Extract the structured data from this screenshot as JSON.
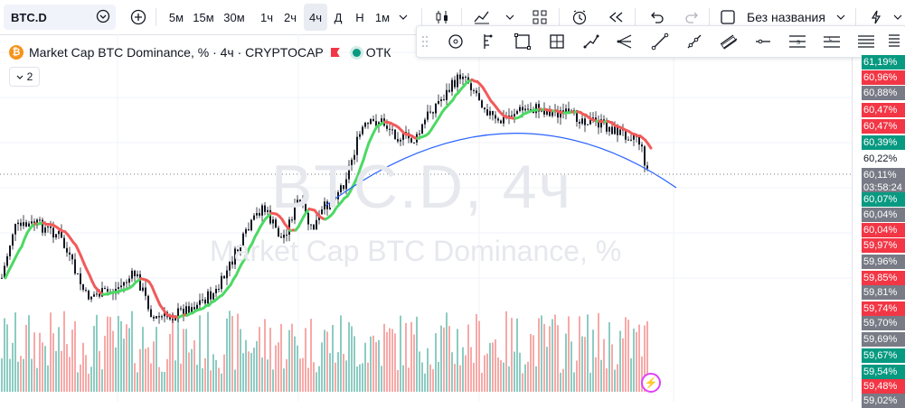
{
  "toolbar": {
    "symbol": "BTC.D",
    "timeframes": [
      "5м",
      "15м",
      "30м",
      "1ч",
      "2ч",
      "4ч",
      "Д",
      "Н",
      "1м"
    ],
    "active_timeframe": "4ч",
    "layout_name": "Без названия"
  },
  "legend": {
    "title": "Market Cap BTC Dominance, % · 4ч · CRYPTOCAP",
    "status": "ОТК",
    "collapse_count": "2"
  },
  "watermark": {
    "symbol": "BTC.D, 4ч",
    "name": "Market Cap BTC Dominance, %"
  },
  "price_scale": {
    "labels": [
      {
        "value": "61,19%",
        "color": "#089981"
      },
      {
        "value": "60,96%",
        "color": "#f23645"
      },
      {
        "value": "60,88%",
        "color": "#787b86"
      },
      {
        "value": "60,47%",
        "color": "#f23645"
      },
      {
        "value": "60,47%",
        "color": "#f23645"
      },
      {
        "value": "60,39%",
        "color": "#089981"
      },
      {
        "value": "60,22%",
        "color": "plain"
      },
      {
        "value": "60,11%",
        "color": "current"
      },
      {
        "value": "60,07%",
        "color": "#089981"
      },
      {
        "value": "60,04%",
        "color": "#787b86"
      },
      {
        "value": "60,04%",
        "color": "#f23645"
      },
      {
        "value": "59,97%",
        "color": "#f23645"
      },
      {
        "value": "59,96%",
        "color": "#787b86"
      },
      {
        "value": "59,85%",
        "color": "#f23645"
      },
      {
        "value": "59,81%",
        "color": "#787b86"
      },
      {
        "value": "59,74%",
        "color": "#f23645"
      },
      {
        "value": "59,70%",
        "color": "#787b86"
      },
      {
        "value": "59,69%",
        "color": "#787b86"
      },
      {
        "value": "59,67%",
        "color": "#089981"
      },
      {
        "value": "59,54%",
        "color": "#089981"
      },
      {
        "value": "59,48%",
        "color": "#f23645"
      },
      {
        "value": "59,02%",
        "color": "#787b86"
      }
    ],
    "current_price": "60,11%",
    "countdown": "03:58:24"
  },
  "colors": {
    "up": "#089981",
    "down": "#f23645",
    "ma_up": "#4cd964",
    "ma_down": "#f25a5a",
    "arc": "#2962ff"
  }
}
